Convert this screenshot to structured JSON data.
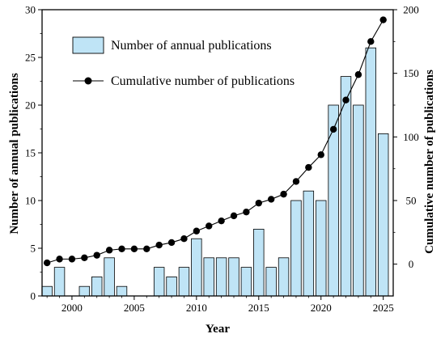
{
  "chart_data": {
    "type": "bar",
    "x": [
      1998,
      1999,
      2000,
      2001,
      2002,
      2003,
      2004,
      2005,
      2006,
      2007,
      2008,
      2009,
      2010,
      2011,
      2012,
      2013,
      2014,
      2015,
      2016,
      2017,
      2018,
      2019,
      2020,
      2021,
      2022,
      2023,
      2024,
      2025
    ],
    "series": [
      {
        "name": "Number of annual publications",
        "type": "bar",
        "axis": "left",
        "color": "#bfe4f6",
        "values": [
          1,
          3,
          0,
          1,
          2,
          4,
          1,
          0,
          0,
          3,
          2,
          3,
          6,
          4,
          4,
          4,
          3,
          7,
          3,
          4,
          10,
          11,
          10,
          20,
          23,
          20,
          26,
          17
        ]
      },
      {
        "name": "Cumulative number of publications",
        "type": "line",
        "axis": "right",
        "color": "#000000",
        "values": [
          1,
          4,
          4,
          5,
          7,
          11,
          12,
          12,
          12,
          15,
          17,
          20,
          26,
          30,
          34,
          38,
          41,
          48,
          51,
          55,
          65,
          76,
          86,
          106,
          129,
          149,
          175,
          192
        ]
      }
    ],
    "xlabel": "Year",
    "ylabel_left": "Number of annual publications",
    "ylabel_right": "Cumulative number of publications",
    "xlim": [
      1997.6,
      2025.8
    ],
    "ylim_left": [
      0,
      30
    ],
    "ylim_right": [
      -25,
      200
    ],
    "xticks": [
      "2000",
      "2005",
      "2010",
      "2015",
      "2020",
      "2025"
    ],
    "yticks_left": [
      "0",
      "5",
      "10",
      "15",
      "20",
      "25",
      "30"
    ],
    "yticks_right": [
      "0",
      "50",
      "100",
      "150",
      "200"
    ],
    "grid": false,
    "legend_position": "top-left"
  }
}
